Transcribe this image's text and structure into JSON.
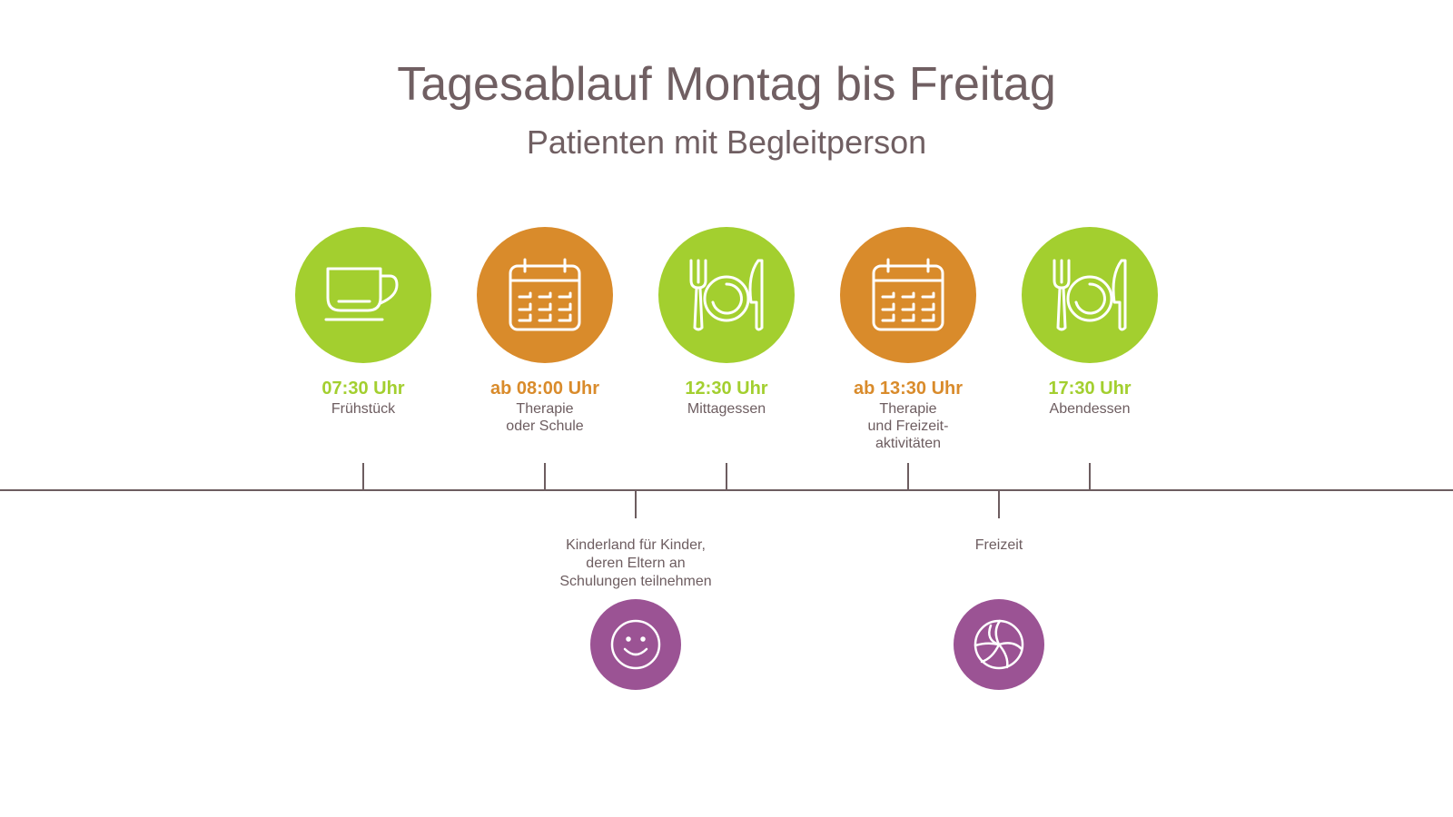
{
  "title": "Tagesablauf Montag bis Freitag",
  "subtitle": "Patienten mit Begleitperson",
  "colors": {
    "green": "#a3cf2f",
    "orange": "#d98b2b",
    "purple": "#9b5394",
    "text": "#6d5d60"
  },
  "steps": [
    {
      "time": "07:30 Uhr",
      "label": "Frühstück",
      "icon": "coffee-cup-icon",
      "color": "green"
    },
    {
      "time": "ab 08:00 Uhr",
      "label": "Therapie\noder Schule",
      "icon": "calendar-icon",
      "color": "orange"
    },
    {
      "time": "12:30 Uhr",
      "label": "Mittagessen",
      "icon": "plate-cutlery-icon",
      "color": "green"
    },
    {
      "time": "ab 13:30 Uhr",
      "label": "Therapie\nund Freizeit-\naktivitäten",
      "icon": "calendar-icon",
      "color": "orange"
    },
    {
      "time": "17:30 Uhr",
      "label": "Abendessen",
      "icon": "plate-cutlery-icon",
      "color": "green"
    }
  ],
  "sub_items": [
    {
      "label": "Kinderland für Kinder,\nderen Eltern an\nSchulungen teilnehmen",
      "icon": "smiley-face-icon",
      "color": "purple"
    },
    {
      "label": "Freizeit",
      "icon": "volleyball-icon",
      "color": "purple"
    }
  ]
}
